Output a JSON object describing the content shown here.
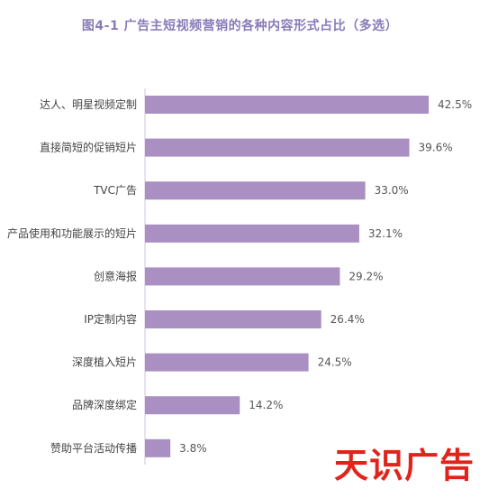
{
  "chart_data": {
    "type": "bar",
    "orientation": "horizontal",
    "title": "图4-1 广告主短视频营销的各种内容形式占比（多选）",
    "categories": [
      "达人、明星视频定制",
      "直接简短的促销短片",
      "TVC广告",
      "产品使用和功能展示的短片",
      "创意海报",
      "IP定制内容",
      "深度植入短片",
      "品牌深度绑定",
      "赞助平台活动传播"
    ],
    "values": [
      42.5,
      39.6,
      33.0,
      32.1,
      29.2,
      26.4,
      24.5,
      14.2,
      3.8
    ],
    "value_labels": [
      "42.5%",
      "39.6%",
      "33.0%",
      "32.1%",
      "29.2%",
      "26.4%",
      "24.5%",
      "14.2%",
      "3.8%"
    ],
    "xlim": [
      0,
      45
    ],
    "grid": false,
    "legend": "none",
    "bar_color": "#a98fc2"
  },
  "watermark": "天识广告"
}
